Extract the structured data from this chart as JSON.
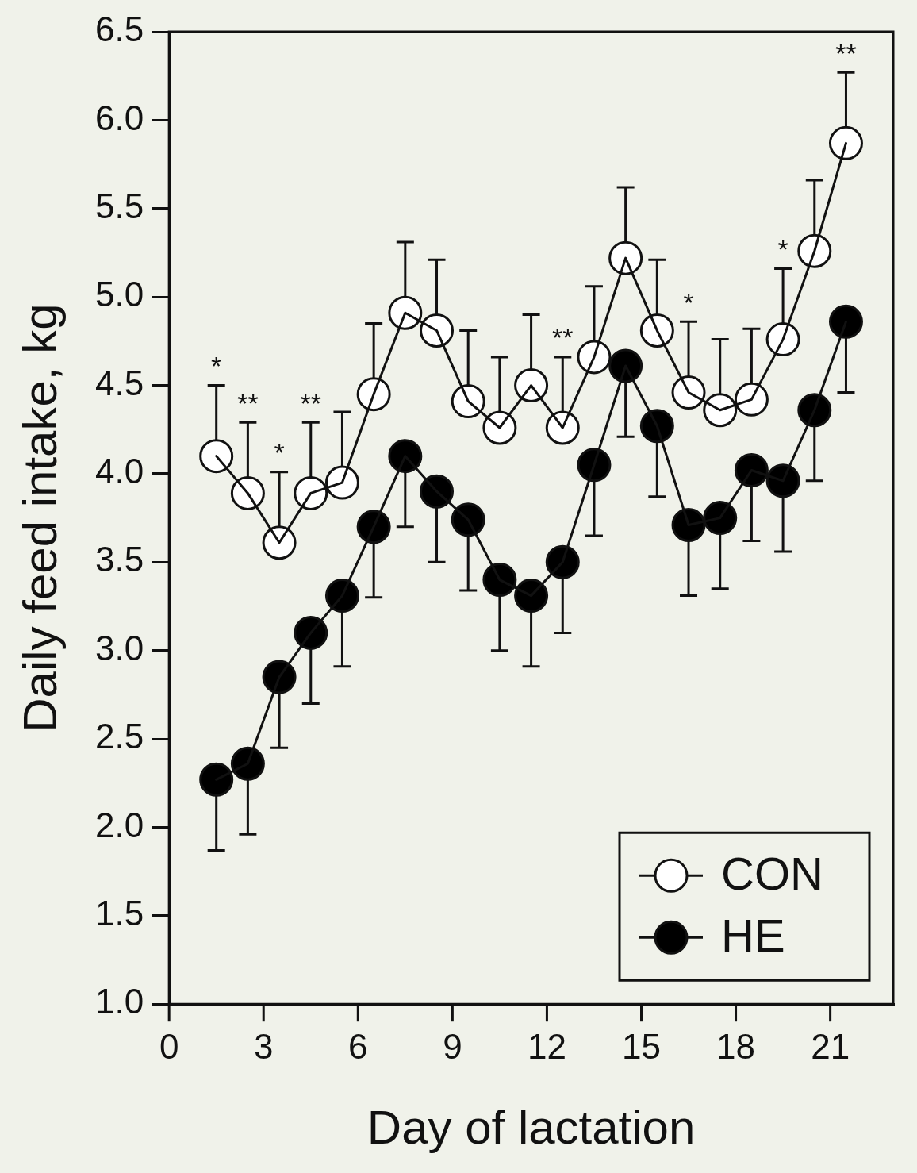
{
  "chart_data": {
    "type": "line",
    "xlabel": "Day of lactation",
    "ylabel": "Daily feed intake, kg",
    "x": [
      1.5,
      2.5,
      3.5,
      4.5,
      5.5,
      6.5,
      7.5,
      8.5,
      9.5,
      10.5,
      11.5,
      12.5,
      13.5,
      14.5,
      15.5,
      16.5,
      17.5,
      18.5,
      19.5,
      20.5,
      21.5
    ],
    "series": [
      {
        "name": "CON",
        "color": "#ffffff",
        "values": [
          4.1,
          3.89,
          3.61,
          3.89,
          3.95,
          4.45,
          4.91,
          4.81,
          4.41,
          4.26,
          4.5,
          4.26,
          4.66,
          5.22,
          4.81,
          4.46,
          4.36,
          4.42,
          4.76,
          5.26,
          5.87
        ],
        "errors": [
          [
            4.1,
            4.5
          ],
          [
            3.89,
            4.29
          ],
          [
            3.61,
            4.01
          ],
          [
            3.89,
            4.29
          ],
          [
            3.95,
            4.35
          ],
          [
            4.45,
            4.85
          ],
          [
            4.91,
            5.31
          ],
          [
            4.81,
            5.21
          ],
          [
            4.41,
            4.81
          ],
          [
            4.26,
            4.66
          ],
          [
            4.5,
            4.9
          ],
          [
            4.26,
            4.66
          ],
          [
            4.66,
            5.06
          ],
          [
            5.22,
            5.62
          ],
          [
            4.81,
            5.21
          ],
          [
            4.46,
            4.86
          ],
          [
            4.36,
            4.76
          ],
          [
            4.42,
            4.82
          ],
          [
            4.76,
            5.16
          ],
          [
            5.26,
            5.66
          ],
          [
            5.87,
            6.27
          ]
        ]
      },
      {
        "name": "HE",
        "color": "#000000",
        "values": [
          2.27,
          2.36,
          2.85,
          3.1,
          3.31,
          3.7,
          4.1,
          3.9,
          3.74,
          3.4,
          3.31,
          3.5,
          4.05,
          4.61,
          4.27,
          3.71,
          3.75,
          4.02,
          3.96,
          4.36,
          4.86
        ],
        "errors": [
          [
            1.87,
            2.27
          ],
          [
            1.96,
            2.36
          ],
          [
            2.45,
            2.85
          ],
          [
            2.7,
            3.1
          ],
          [
            2.91,
            3.31
          ],
          [
            3.3,
            3.7
          ],
          [
            3.7,
            4.1
          ],
          [
            3.5,
            3.9
          ],
          [
            3.34,
            3.74
          ],
          [
            3.0,
            3.4
          ],
          [
            2.91,
            3.31
          ],
          [
            3.1,
            3.5
          ],
          [
            3.65,
            4.05
          ],
          [
            4.21,
            4.61
          ],
          [
            3.87,
            4.27
          ],
          [
            3.31,
            3.71
          ],
          [
            3.35,
            3.75
          ],
          [
            3.62,
            4.02
          ],
          [
            3.56,
            3.96
          ],
          [
            3.96,
            4.36
          ],
          [
            4.46,
            4.86
          ]
        ]
      }
    ],
    "xlim": [
      0,
      23
    ],
    "xticks": [
      0,
      3,
      6,
      9,
      12,
      15,
      18,
      21
    ],
    "ylim": [
      1,
      6.5
    ],
    "yticks": [
      {
        "value": 1,
        "label": "1.0"
      },
      1.5,
      {
        "value": 2,
        "label": "2.0"
      },
      2.5,
      {
        "value": 3,
        "label": "3.0"
      },
      3.5,
      {
        "value": 4,
        "label": "4.0"
      },
      4.5,
      {
        "value": 5,
        "label": "5.0"
      },
      5.5,
      {
        "value": 6,
        "label": "6.0"
      },
      6.5
    ],
    "annotations": [
      {
        "text": "*",
        "x": 1.5,
        "y": 4.5
      },
      {
        "text": "**",
        "x": 2.5,
        "y": 4.29
      },
      {
        "text": "*",
        "x": 3.5,
        "y": 4.01
      },
      {
        "text": "**",
        "x": 4.5,
        "y": 4.29
      },
      {
        "text": "**",
        "x": 12.5,
        "y": 4.66
      },
      {
        "text": "*",
        "x": 16.5,
        "y": 4.86
      },
      {
        "text": "*",
        "x": 19.5,
        "y": 5.16
      },
      {
        "text": "**",
        "x": 21.5,
        "y": 6.27
      }
    ],
    "grid": false,
    "legend": "bottom right",
    "marker": "circle",
    "line_style": "solid"
  }
}
